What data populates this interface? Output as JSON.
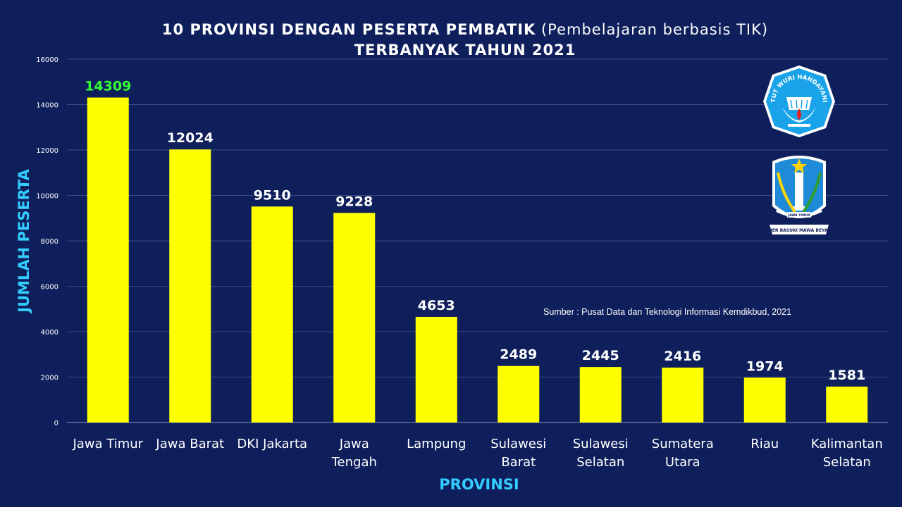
{
  "title": {
    "line1_bold": "10 PROVINSI DENGAN PESERTA PEMBATIK",
    "line1_normal": "(Pembelajaran berbasis TIK)",
    "line2": "TERBANYAK TAHUN 2021"
  },
  "source": "Sumber :  Pusat Data dan Teknologi Informasi Kemdikbud, 2021",
  "logos": {
    "left_label": "TUT WURI HANDAYANI",
    "right_label_top": "JAWA TIMUR",
    "right_label_bottom": "JER BASUKI MAWA BEYA"
  },
  "colors": {
    "background": "#0e1f5b",
    "bar": "#ffff00",
    "highlight_label": "#33ff33",
    "axis_title": "#33ccff"
  },
  "chart_data": {
    "type": "bar",
    "xlabel": "PROVINSI",
    "ylabel": "JUMLAH PESERTA",
    "ylim": [
      0,
      16000
    ],
    "yticks": [
      "0",
      "2000",
      "4000",
      "6000",
      "8000",
      "10000",
      "12000",
      "14000",
      "16000"
    ],
    "categories": [
      [
        "Jawa Timur"
      ],
      [
        "Jawa Barat"
      ],
      [
        "DKI Jakarta"
      ],
      [
        "Jawa",
        "Tengah"
      ],
      [
        "Lampung"
      ],
      [
        "Sulawesi",
        "Barat"
      ],
      [
        "Sulawesi",
        "Selatan"
      ],
      [
        "Sumatera",
        "Utara"
      ],
      [
        "Riau"
      ],
      [
        "Kalimantan",
        "Selatan"
      ]
    ],
    "values": [
      14309,
      12024,
      9510,
      9228,
      4653,
      2489,
      2445,
      2416,
      1974,
      1581
    ],
    "grid": true,
    "legend": "none"
  }
}
